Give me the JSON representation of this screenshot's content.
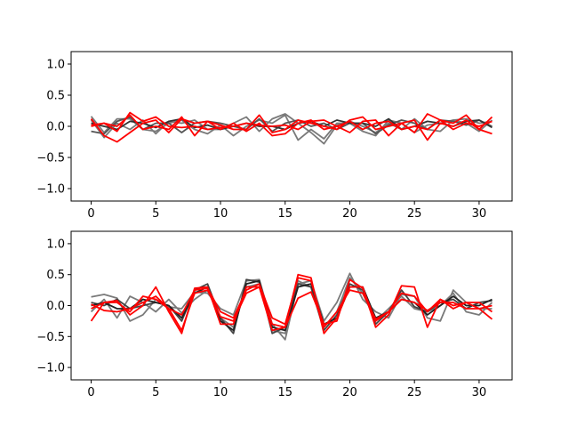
{
  "chart_data": [
    {
      "type": "line",
      "x": [
        0,
        1,
        2,
        3,
        4,
        5,
        6,
        7,
        8,
        9,
        10,
        11,
        12,
        13,
        14,
        15,
        16,
        17,
        18,
        19,
        20,
        21,
        22,
        23,
        24,
        25,
        26,
        27,
        28,
        29,
        30,
        31
      ],
      "xlim": [
        -1.55,
        32.55
      ],
      "ylim": [
        -1.2,
        1.2
      ],
      "xticks": [
        0,
        5,
        10,
        15,
        20,
        25,
        30
      ],
      "yticks": [
        -1.0,
        -0.5,
        0.0,
        0.5,
        1.0
      ],
      "xtick_labels": [
        "0",
        "5",
        "10",
        "15",
        "20",
        "25",
        "30"
      ],
      "ytick_labels": [
        "−1.0",
        "−0.5",
        "0.0",
        "0.5",
        "1.0"
      ],
      "grid": false,
      "title": "",
      "xlabel": "",
      "ylabel": "",
      "series": [
        {
          "color": "#7a7a7a",
          "values": [
            0.16,
            -0.1,
            0.12,
            0.12,
            -0.05,
            -0.08,
            0.05,
            0.1,
            -0.05,
            -0.12,
            0.02,
            -0.15,
            0.0,
            0.1,
            0.05,
            0.18,
            -0.22,
            -0.05,
            -0.2,
            0.05,
            0.05,
            -0.08,
            -0.15,
            0.1,
            0.05,
            -0.1,
            0.02,
            0.05,
            0.1,
            0.12,
            0.05,
            0.08
          ]
        },
        {
          "color": "#7a7a7a",
          "values": [
            0.1,
            -0.18,
            0.05,
            -0.05,
            0.1,
            -0.12,
            0.08,
            0.05,
            0.1,
            -0.05,
            -0.05,
            0.05,
            0.15,
            -0.08,
            0.12,
            0.2,
            0.05,
            -0.1,
            -0.28,
            0.02,
            0.08,
            0.0,
            -0.1,
            0.05,
            -0.05,
            0.12,
            -0.05,
            -0.08,
            0.1,
            0.05,
            -0.08,
            0.1
          ]
        },
        {
          "color": "#555555",
          "values": [
            -0.08,
            -0.12,
            0.08,
            0.15,
            -0.05,
            0.05,
            0.05,
            -0.1,
            0.05,
            0.08,
            0.05,
            0.0,
            -0.05,
            0.12,
            -0.08,
            0.05,
            0.1,
            0.0,
            0.05,
            -0.05,
            0.05,
            0.05,
            -0.12,
            0.02,
            0.1,
            0.05,
            -0.05,
            0.1,
            0.08,
            0.02,
            0.1,
            0.0
          ]
        },
        {
          "color": "#333333",
          "values": [
            0.05,
            0.0,
            -0.05,
            0.08,
            0.05,
            -0.02,
            0.08,
            0.12,
            -0.02,
            0.02,
            -0.05,
            0.0,
            0.05,
            0.0,
            0.0,
            -0.05,
            0.05,
            0.08,
            0.0,
            0.1,
            0.05,
            0.05,
            0.0,
            0.12,
            -0.05,
            0.0,
            0.08,
            0.05,
            0.0,
            0.08,
            0.1,
            -0.02
          ]
        },
        {
          "color": "#ff0000",
          "values": [
            0.02,
            0.05,
            0.0,
            0.18,
            -0.05,
            0.0,
            -0.05,
            0.15,
            -0.15,
            0.08,
            0.02,
            -0.05,
            -0.05,
            0.18,
            -0.1,
            -0.05,
            0.1,
            0.05,
            0.0,
            -0.05,
            0.1,
            0.15,
            -0.05,
            0.0,
            0.05,
            -0.1,
            0.2,
            0.1,
            0.05,
            0.18,
            -0.05,
            0.15
          ]
        },
        {
          "color": "#ff0000",
          "values": [
            0.12,
            -0.15,
            -0.25,
            -0.1,
            0.05,
            0.1,
            -0.1,
            0.12,
            0.05,
            0.08,
            -0.05,
            0.05,
            -0.08,
            0.05,
            -0.15,
            -0.12,
            0.05,
            0.1,
            -0.05,
            0.0,
            -0.1,
            0.08,
            0.1,
            -0.15,
            0.05,
            0.1,
            -0.22,
            0.05,
            0.0,
            0.1,
            -0.05,
            -0.12
          ]
        },
        {
          "color": "#ff0000",
          "values": [
            0.0,
            0.05,
            -0.08,
            0.22,
            0.08,
            0.15,
            0.0,
            -0.02,
            0.0,
            -0.05,
            -0.02,
            0.0,
            0.05,
            0.02,
            0.0,
            0.02,
            -0.05,
            0.08,
            0.1,
            0.0,
            0.08,
            -0.05,
            0.05,
            0.08,
            -0.05,
            0.0,
            -0.05,
            0.1,
            -0.05,
            0.05,
            0.0,
            0.08
          ]
        }
      ]
    },
    {
      "type": "line",
      "x": [
        0,
        1,
        2,
        3,
        4,
        5,
        6,
        7,
        8,
        9,
        10,
        11,
        12,
        13,
        14,
        15,
        16,
        17,
        18,
        19,
        20,
        21,
        22,
        23,
        24,
        25,
        26,
        27,
        28,
        29,
        30,
        31
      ],
      "xlim": [
        -1.55,
        32.55
      ],
      "ylim": [
        -1.2,
        1.2
      ],
      "xticks": [
        0,
        5,
        10,
        15,
        20,
        25,
        30
      ],
      "yticks": [
        -1.0,
        -0.5,
        0.0,
        0.5,
        1.0
      ],
      "xtick_labels": [
        "0",
        "5",
        "10",
        "15",
        "20",
        "25",
        "30"
      ],
      "ytick_labels": [
        "−1.0",
        "−0.5",
        "0.0",
        "0.5",
        "1.0"
      ],
      "grid": false,
      "title": "",
      "xlabel": "",
      "ylabel": "",
      "series": [
        {
          "color": "#7a7a7a",
          "values": [
            0.14,
            0.18,
            0.12,
            -0.25,
            -0.15,
            0.1,
            -0.02,
            -0.05,
            0.22,
            0.2,
            -0.05,
            -0.15,
            0.4,
            0.42,
            -0.3,
            -0.55,
            0.35,
            0.4,
            -0.25,
            0.05,
            0.52,
            0.1,
            -0.1,
            -0.2,
            0.18,
            0.15,
            -0.2,
            -0.25,
            0.25,
            0.05,
            -0.05,
            -0.05
          ]
        },
        {
          "color": "#7a7a7a",
          "values": [
            -0.1,
            0.1,
            -0.2,
            0.15,
            0.05,
            -0.1,
            0.1,
            -0.12,
            0.1,
            0.25,
            -0.2,
            -0.35,
            0.3,
            0.35,
            -0.4,
            -0.45,
            0.4,
            0.3,
            -0.35,
            -0.1,
            0.45,
            0.2,
            -0.25,
            -0.05,
            0.15,
            -0.05,
            -0.1,
            0.0,
            0.2,
            -0.1,
            -0.15,
            0.05
          ]
        },
        {
          "color": "#444444",
          "values": [
            0.05,
            0.0,
            0.1,
            -0.05,
            0.0,
            0.05,
            0.0,
            -0.25,
            0.25,
            0.35,
            -0.2,
            -0.45,
            0.42,
            0.38,
            -0.45,
            -0.35,
            0.35,
            0.3,
            -0.4,
            -0.15,
            0.35,
            0.25,
            -0.3,
            -0.1,
            0.25,
            -0.02,
            -0.1,
            0.05,
            0.1,
            -0.05,
            0.05,
            0.08
          ]
        },
        {
          "color": "#222222",
          "values": [
            0.0,
            0.05,
            -0.05,
            -0.05,
            0.1,
            0.05,
            0.0,
            -0.2,
            0.2,
            0.3,
            -0.25,
            -0.4,
            0.35,
            0.4,
            -0.35,
            -0.4,
            0.3,
            0.35,
            -0.3,
            -0.2,
            0.3,
            0.3,
            -0.2,
            -0.1,
            0.1,
            0.05,
            -0.15,
            0.0,
            0.15,
            0.0,
            0.0,
            0.1
          ]
        },
        {
          "color": "#ff0000",
          "values": [
            -0.25,
            0.05,
            0.08,
            -0.15,
            0.0,
            0.3,
            -0.1,
            -0.45,
            0.28,
            0.3,
            -0.3,
            -0.3,
            0.3,
            0.3,
            -0.4,
            -0.35,
            0.5,
            0.45,
            -0.45,
            -0.2,
            0.3,
            0.3,
            -0.35,
            -0.15,
            0.32,
            0.3,
            -0.35,
            0.1,
            0.0,
            0.05,
            0.05,
            -0.1
          ]
        },
        {
          "color": "#ff0000",
          "values": [
            0.02,
            -0.08,
            -0.1,
            -0.05,
            0.05,
            0.15,
            -0.05,
            -0.4,
            0.2,
            0.25,
            -0.18,
            -0.25,
            0.2,
            0.3,
            -0.3,
            -0.35,
            0.12,
            0.22,
            -0.3,
            -0.25,
            0.42,
            0.28,
            -0.25,
            -0.1,
            0.2,
            0.15,
            -0.1,
            0.1,
            -0.05,
            0.05,
            -0.05,
            -0.22
          ]
        },
        {
          "color": "#ff0000",
          "values": [
            -0.05,
            0.05,
            0.05,
            -0.1,
            0.15,
            0.1,
            -0.05,
            -0.15,
            0.25,
            0.28,
            -0.1,
            -0.2,
            0.25,
            0.35,
            -0.2,
            -0.3,
            0.45,
            0.4,
            -0.35,
            -0.1,
            0.25,
            0.2,
            -0.22,
            -0.1,
            0.1,
            0.05,
            -0.08,
            0.05,
            0.05,
            -0.05,
            -0.05,
            0.0
          ]
        }
      ]
    }
  ]
}
